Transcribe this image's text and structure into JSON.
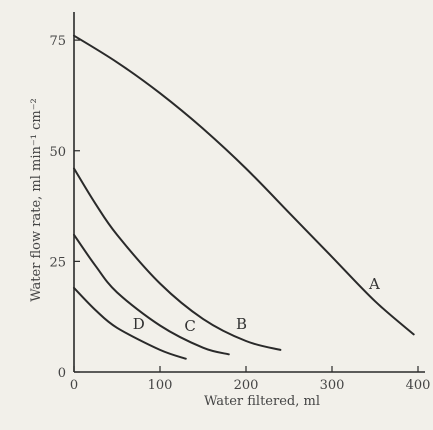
{
  "chart_data": {
    "type": "line",
    "title": "",
    "xlabel": "Water filtered, ml",
    "ylabel": "Water flow rate, ml min⁻¹ cm⁻²",
    "xlim": [
      0,
      400
    ],
    "ylim": [
      0,
      80
    ],
    "xticks": [
      "0",
      "100",
      "200",
      "300",
      "400"
    ],
    "yticks": [
      "0",
      "25",
      "50",
      "75"
    ],
    "grid": false,
    "axis_color": "#2a2a2a",
    "line_color": "#2a2a2a",
    "background_color": "#f2f0ea",
    "series": [
      {
        "name": "A",
        "x": [
          0,
          50,
          100,
          150,
          200,
          250,
          300,
          350,
          395
        ],
        "y": [
          76,
          70,
          63,
          55,
          46,
          36,
          26,
          16,
          8.5
        ]
      },
      {
        "name": "B",
        "x": [
          0,
          25,
          50,
          100,
          150,
          200,
          240
        ],
        "y": [
          46,
          38,
          31,
          20,
          12,
          7,
          5
        ]
      },
      {
        "name": "C",
        "x": [
          0,
          25,
          50,
          100,
          150,
          180
        ],
        "y": [
          31,
          24,
          18,
          10.5,
          5.5,
          4
        ]
      },
      {
        "name": "D",
        "x": [
          0,
          25,
          50,
          100,
          130
        ],
        "y": [
          19,
          14,
          10,
          5,
          3
        ]
      }
    ]
  }
}
